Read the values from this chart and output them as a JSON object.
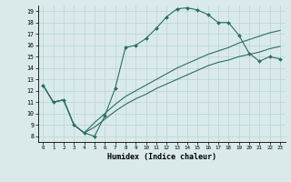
{
  "xlabel": "Humidex (Indice chaleur)",
  "xlim": [
    -0.5,
    23.5
  ],
  "ylim": [
    7.5,
    19.5
  ],
  "xticks": [
    0,
    1,
    2,
    3,
    4,
    5,
    6,
    7,
    8,
    9,
    10,
    11,
    12,
    13,
    14,
    15,
    16,
    17,
    18,
    19,
    20,
    21,
    22,
    23
  ],
  "yticks": [
    8,
    9,
    10,
    11,
    12,
    13,
    14,
    15,
    16,
    17,
    18,
    19
  ],
  "bg_color": "#daeaea",
  "line_color": "#2a6e63",
  "grid_color": "#b8d4d4",
  "line1_x": [
    0,
    1,
    2,
    3,
    4,
    5,
    6,
    7,
    8,
    9,
    10,
    11,
    12,
    13,
    14,
    15,
    16,
    17,
    18,
    19,
    20,
    21,
    22,
    23
  ],
  "line1_y": [
    12.5,
    11.0,
    11.2,
    9.0,
    8.3,
    8.0,
    9.8,
    12.2,
    15.8,
    16.0,
    16.6,
    17.5,
    18.5,
    19.2,
    19.3,
    19.1,
    18.7,
    18.0,
    18.0,
    16.9,
    15.3,
    14.6,
    15.0,
    14.8
  ],
  "line2_x": [
    0,
    1,
    2,
    3,
    4,
    5,
    6,
    7,
    8,
    9,
    10,
    11,
    12,
    13,
    14,
    15,
    16,
    17,
    18,
    19,
    20,
    21,
    22,
    23
  ],
  "line2_y": [
    12.5,
    11.0,
    11.2,
    9.0,
    8.3,
    9.2,
    10.0,
    10.8,
    11.5,
    12.0,
    12.5,
    13.0,
    13.5,
    14.0,
    14.4,
    14.8,
    15.2,
    15.5,
    15.8,
    16.2,
    16.5,
    16.8,
    17.1,
    17.3
  ],
  "line3_x": [
    0,
    1,
    2,
    3,
    4,
    5,
    6,
    7,
    8,
    9,
    10,
    11,
    12,
    13,
    14,
    15,
    16,
    17,
    18,
    19,
    20,
    21,
    22,
    23
  ],
  "line3_y": [
    12.5,
    11.0,
    11.2,
    9.0,
    8.3,
    8.8,
    9.5,
    10.2,
    10.8,
    11.3,
    11.7,
    12.2,
    12.6,
    13.0,
    13.4,
    13.8,
    14.2,
    14.5,
    14.7,
    15.0,
    15.2,
    15.4,
    15.7,
    15.9
  ]
}
